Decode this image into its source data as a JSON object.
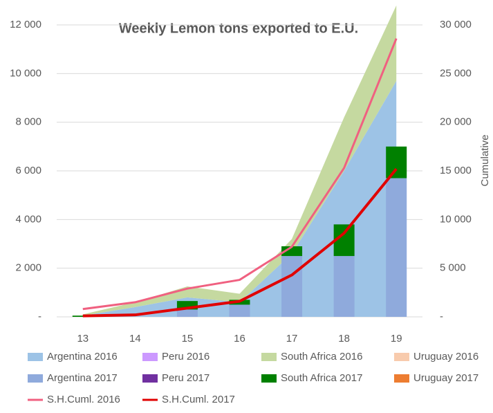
{
  "chart_data": {
    "type": "combo",
    "title": "Weekly Lemon tons exported to E.U.",
    "y2_label": "Cumulative",
    "categories": [
      "13",
      "14",
      "15",
      "16",
      "17",
      "18",
      "19"
    ],
    "ylim": [
      0,
      12000
    ],
    "yticks": [
      {
        "value": 0,
        "label": "-"
      },
      {
        "value": 2000,
        "label": "2 000"
      },
      {
        "value": 4000,
        "label": "4 000"
      },
      {
        "value": 6000,
        "label": "6 000"
      },
      {
        "value": 8000,
        "label": "8 000"
      },
      {
        "value": 10000,
        "label": "10 000"
      },
      {
        "value": 12000,
        "label": "12 000"
      }
    ],
    "y2lim": [
      0,
      30000
    ],
    "y2ticks": [
      {
        "value": 0,
        "label": "-"
      },
      {
        "value": 5000,
        "label": "5 000"
      },
      {
        "value": 10000,
        "label": "10 000"
      },
      {
        "value": 15000,
        "label": "15 000"
      },
      {
        "value": 20000,
        "label": "20 000"
      },
      {
        "value": 25000,
        "label": "25 000"
      },
      {
        "value": 30000,
        "label": "30 000"
      }
    ],
    "grid": true,
    "legend": "bottom",
    "series": [
      {
        "name": "Argentina 2016",
        "kind": "area",
        "color": "#9dc3e6",
        "values": [
          50,
          400,
          800,
          600,
          2600,
          6000,
          9700
        ]
      },
      {
        "name": "Peru 2016",
        "kind": "area",
        "color": "#cc99ff",
        "values": [
          0,
          0,
          0,
          0,
          0,
          0,
          0
        ]
      },
      {
        "name": "South Africa 2016",
        "kind": "area",
        "color": "#c5d9a0",
        "values": [
          50,
          200,
          450,
          350,
          600,
          2200,
          3100
        ]
      },
      {
        "name": "Uruguay 2016",
        "kind": "area",
        "color": "#f8cbad",
        "values": [
          0,
          0,
          0,
          0,
          0,
          0,
          0
        ]
      },
      {
        "name": "Argentina 2017",
        "kind": "bar",
        "color": "#8faadc",
        "values": [
          0,
          0,
          300,
          500,
          2500,
          2500,
          5700
        ]
      },
      {
        "name": "Peru 2017",
        "kind": "bar",
        "color": "#7030a0",
        "values": [
          0,
          0,
          0,
          0,
          0,
          0,
          0
        ]
      },
      {
        "name": "South Africa 2017",
        "kind": "bar",
        "color": "#008000",
        "values": [
          50,
          0,
          350,
          200,
          400,
          1300,
          1300
        ]
      },
      {
        "name": "Uruguay 2017",
        "kind": "bar",
        "color": "#ed7d31",
        "values": [
          0,
          0,
          0,
          0,
          0,
          0,
          0
        ]
      },
      {
        "name": "S.H.Cuml. 2016",
        "kind": "line",
        "axis": "y2",
        "color": "#f06080",
        "values": [
          800,
          1500,
          2900,
          3800,
          7200,
          15300,
          28600
        ]
      },
      {
        "name": "S.H.Cuml. 2017",
        "kind": "line",
        "axis": "y2",
        "color": "#e00000",
        "values": [
          100,
          200,
          900,
          1600,
          4300,
          8600,
          15200
        ]
      }
    ]
  }
}
